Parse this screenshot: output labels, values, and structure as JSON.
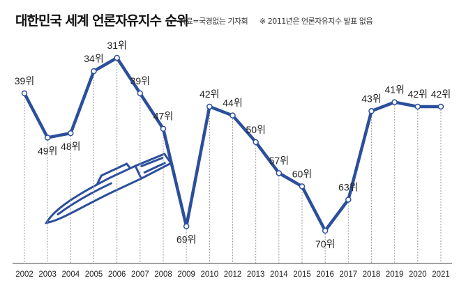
{
  "header": {
    "title": "대한민국 세계 언론자유지수 순위",
    "source": "자료=국경없는 기자회",
    "note": "※ 2011년은 언론자유지수 발표 없음"
  },
  "chart_data": {
    "type": "line",
    "title": "대한민국 세계 언론자유지수 순위",
    "xlabel": "",
    "ylabel": "순위",
    "x": [
      "2002",
      "2003",
      "2004",
      "2005",
      "2006",
      "2007",
      "2008",
      "2009",
      "2010",
      "2012",
      "2013",
      "2014",
      "2015",
      "2016",
      "2017",
      "2018",
      "2019",
      "2020",
      "2021"
    ],
    "values": [
      39,
      49,
      48,
      34,
      31,
      39,
      47,
      69,
      42,
      44,
      50,
      57,
      60,
      70,
      63,
      43,
      41,
      42,
      42
    ],
    "point_labels": [
      "39위",
      "49위",
      "48위",
      "34위",
      "31위",
      "39위",
      "47위",
      "69위",
      "42위",
      "44위",
      "50위",
      "57위",
      "60위",
      "70위",
      "63위",
      "43위",
      "41위",
      "42위",
      "42위"
    ],
    "label_below": [
      false,
      true,
      true,
      false,
      false,
      false,
      false,
      true,
      false,
      false,
      false,
      false,
      false,
      true,
      false,
      false,
      false,
      false,
      false
    ],
    "ylim": [
      31,
      70
    ],
    "y_inverted": true,
    "grid": false,
    "line_color": "#2c4f9c"
  }
}
